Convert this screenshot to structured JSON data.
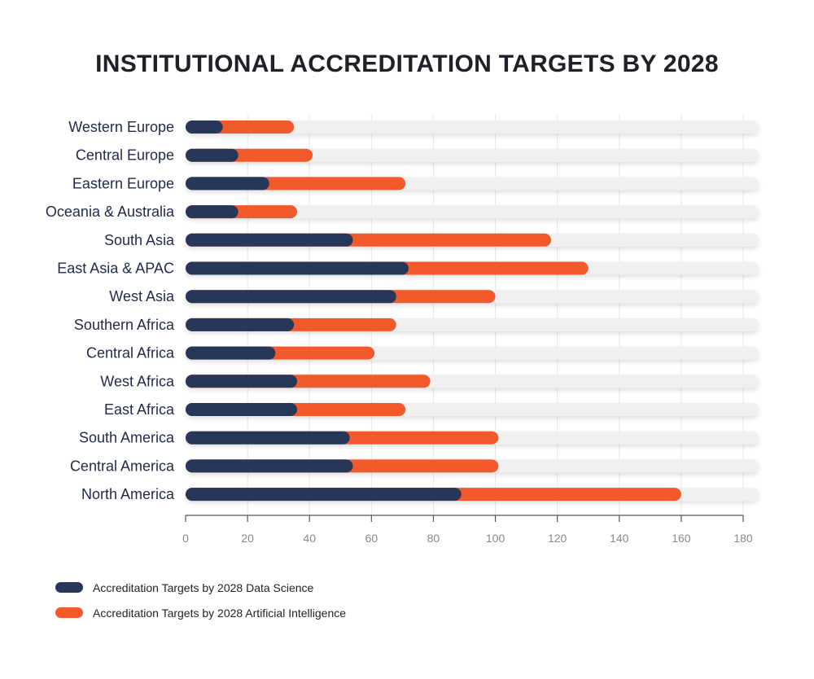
{
  "title": "INSTITUTIONAL ACCREDITATION TARGETS BY 2028",
  "colors": {
    "data_science": "#27375a",
    "artificial_intelligence": "#f25a2c",
    "track": "#f0f0f0",
    "grid": "#e8e8e8",
    "axis": "#555555",
    "category_text": "#1f2a4a",
    "tick_text": "#8a8a8a"
  },
  "chart_data": {
    "type": "bar",
    "orientation": "horizontal",
    "stacked": true,
    "categories": [
      "Western Europe",
      "Central Europe",
      "Eastern Europe",
      "Oceania & Australia",
      "South Asia",
      "East Asia & APAC",
      "West Asia",
      "Southern Africa",
      "Central Africa",
      "West Africa",
      "East Africa",
      "South America",
      "Central America",
      "North America"
    ],
    "series": [
      {
        "name": "Accreditation Targets by 2028 Data Science",
        "color": "#27375a",
        "values": [
          12,
          17,
          27,
          17,
          54,
          72,
          68,
          35,
          29,
          36,
          36,
          53,
          54,
          89
        ]
      },
      {
        "name": "Accreditation Targets by 2028 Artificial Intelligence",
        "color": "#f25a2c",
        "values": [
          23,
          24,
          44,
          19,
          64,
          58,
          32,
          33,
          32,
          43,
          35,
          48,
          47,
          71
        ]
      }
    ],
    "xlim": [
      0,
      180
    ],
    "xticks": [
      "0",
      "20",
      "40",
      "60",
      "80",
      "100",
      "120",
      "140",
      "160",
      "180"
    ],
    "xtick_values": [
      0,
      20,
      40,
      60,
      80,
      100,
      120,
      140,
      160,
      180
    ],
    "grid": true,
    "legend_position": "bottom-left"
  },
  "legend": [
    {
      "label": "Accreditation Targets by 2028 Data Science",
      "color": "#27375a"
    },
    {
      "label": "Accreditation Targets by 2028 Artificial Intelligence",
      "color": "#f25a2c"
    }
  ]
}
